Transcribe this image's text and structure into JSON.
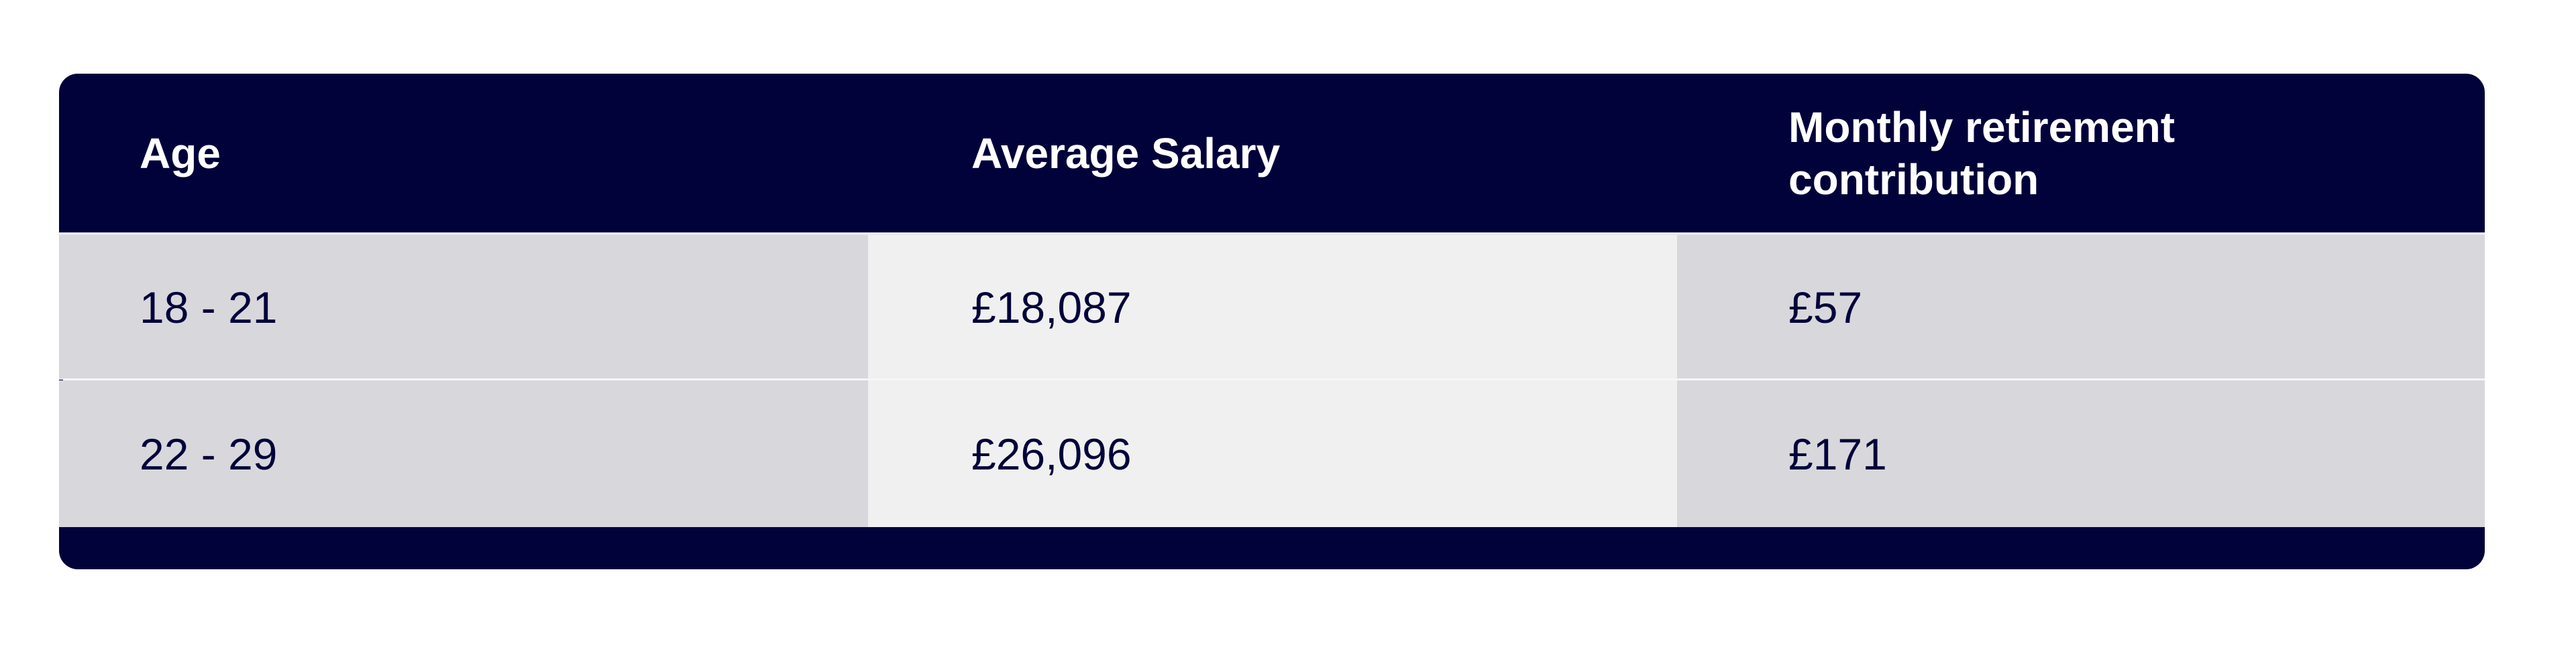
{
  "table": {
    "columns": [
      "Age",
      "Average Salary",
      "Monthly retirement contribution"
    ],
    "rows": [
      [
        "18 - 21",
        "£18,087",
        "£57"
      ],
      [
        "22 - 29",
        "£26,096",
        "£171"
      ]
    ],
    "colors": {
      "header": "#02023a",
      "cell_dark": "#d8d7dc",
      "cell_light": "#f0f0f0",
      "text": "#02023a"
    }
  }
}
